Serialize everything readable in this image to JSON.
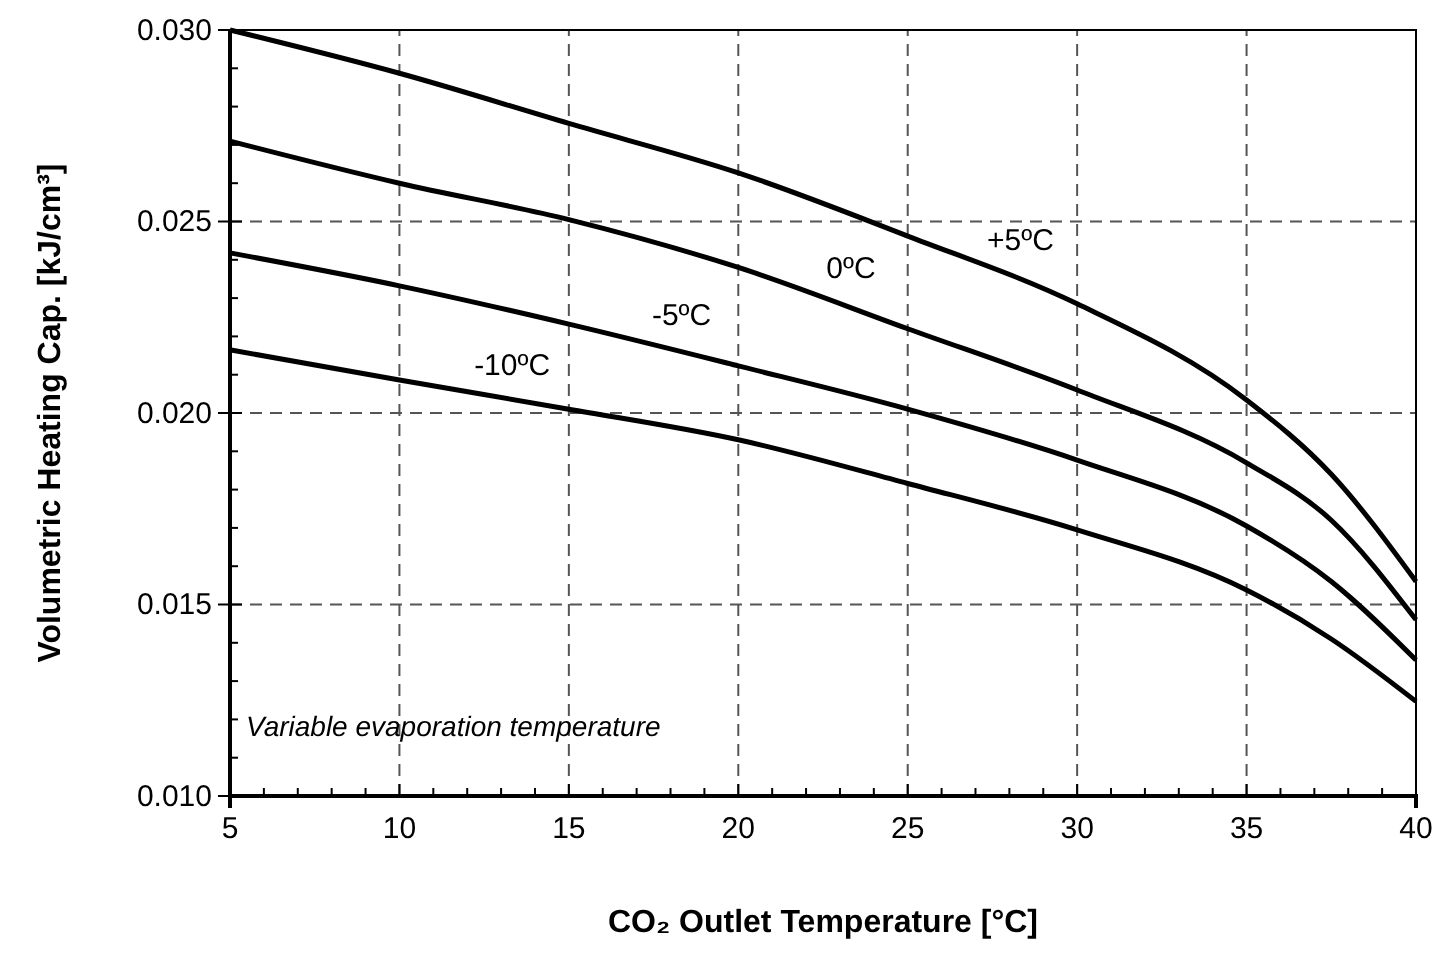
{
  "chart_data": {
    "type": "line",
    "xlabel": "CO₂ Outlet Temperature [°C]",
    "ylabel": "Volumetric Heating Cap. [kJ/cm³]",
    "x": [
      5,
      10,
      15,
      20,
      25,
      30,
      35,
      37.5,
      40
    ],
    "series": [
      {
        "name": "+5ºC",
        "color": "#000000",
        "values": [
          0.03,
          0.02887,
          0.02756,
          0.02627,
          0.02462,
          0.02285,
          0.02034,
          0.0184,
          0.0156
        ]
      },
      {
        "name": "0ºC",
        "color": "#000000",
        "values": [
          0.0271,
          0.026,
          0.02505,
          0.0238,
          0.0222,
          0.0206,
          0.0187,
          0.0172,
          0.0146
        ]
      },
      {
        "name": "-5ºC",
        "color": "#000000",
        "values": [
          0.02418,
          0.02332,
          0.02232,
          0.02123,
          0.0201,
          0.01877,
          0.01705,
          0.0156,
          0.01355
        ]
      },
      {
        "name": "-10ºC",
        "color": "#000000",
        "values": [
          0.02165,
          0.02086,
          0.0201,
          0.0193,
          0.01816,
          0.01695,
          0.01538,
          0.0141,
          0.01247
        ]
      }
    ],
    "xlim": [
      5,
      40
    ],
    "xticks": [
      5,
      {
        "value": 6,
        "label": null
      },
      {
        "value": 7,
        "label": null
      },
      {
        "value": 8,
        "label": null
      },
      {
        "value": 9,
        "label": null
      },
      10,
      {
        "value": 11,
        "label": null
      },
      {
        "value": 12,
        "label": null
      },
      {
        "value": 13,
        "label": null
      },
      {
        "value": 14,
        "label": null
      },
      15,
      {
        "value": 16,
        "label": null
      },
      {
        "value": 17,
        "label": null
      },
      {
        "value": 18,
        "label": null
      },
      {
        "value": 19,
        "label": null
      },
      20,
      {
        "value": 21,
        "label": null
      },
      {
        "value": 22,
        "label": null
      },
      {
        "value": 23,
        "label": null
      },
      {
        "value": 24,
        "label": null
      },
      25,
      {
        "value": 26,
        "label": null
      },
      {
        "value": 27,
        "label": null
      },
      {
        "value": 28,
        "label": null
      },
      {
        "value": 29,
        "label": null
      },
      30,
      {
        "value": 31,
        "label": null
      },
      {
        "value": 32,
        "label": null
      },
      {
        "value": 33,
        "label": null
      },
      {
        "value": 34,
        "label": null
      },
      35,
      {
        "value": 36,
        "label": null
      },
      {
        "value": 37,
        "label": null
      },
      {
        "value": 38,
        "label": null
      },
      {
        "value": 39,
        "label": null
      },
      40
    ],
    "ylim": [
      0.01,
      0.03
    ],
    "yticks": [
      {
        "value": 0.01,
        "label": "0.010"
      },
      {
        "value": 0.011,
        "label": null
      },
      {
        "value": 0.012,
        "label": null
      },
      {
        "value": 0.013,
        "label": null
      },
      {
        "value": 0.014,
        "label": null
      },
      0.015,
      {
        "value": 0.016,
        "label": null
      },
      {
        "value": 0.017,
        "label": null
      },
      {
        "value": 0.018,
        "label": null
      },
      {
        "value": 0.019,
        "label": null
      },
      {
        "value": 0.02,
        "label": "0.020"
      },
      {
        "value": 0.021,
        "label": null
      },
      {
        "value": 0.022,
        "label": null
      },
      {
        "value": 0.023,
        "label": null
      },
      {
        "value": 0.024,
        "label": null
      },
      0.025,
      {
        "value": 0.026,
        "label": null
      },
      {
        "value": 0.027,
        "label": null
      },
      {
        "value": 0.028,
        "label": null
      },
      {
        "value": 0.029,
        "label": null
      },
      {
        "value": 0.03,
        "label": "0.030"
      }
    ],
    "grid": true,
    "marker": "none",
    "line_style": "solid",
    "annotations": [
      "Variable evaporation temperature"
    ]
  }
}
